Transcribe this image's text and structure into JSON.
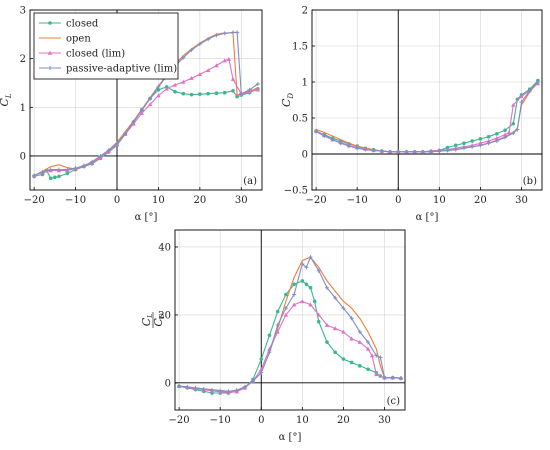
{
  "chart_data": [
    {
      "type": "line",
      "panel_label": "(a)",
      "xlabel": "α [°]",
      "ylabel": "C_L",
      "xlim": [
        -21,
        35
      ],
      "ylim": [
        -0.7,
        3
      ],
      "xticks": [
        -20,
        -10,
        0,
        10,
        20,
        30
      ],
      "yticks": [
        0,
        1,
        2,
        3
      ],
      "grid": true,
      "legend_position": "top-left",
      "series": [
        {
          "name": "closed",
          "color": "#3cb68f",
          "marker": "circle",
          "x": [
            -20,
            -18,
            -17,
            -16,
            -15,
            -14,
            -12,
            -10,
            -8,
            -6,
            -4,
            -2,
            0,
            2,
            4,
            6,
            8,
            10,
            12,
            14,
            16,
            18,
            20,
            22,
            24,
            26,
            28,
            29,
            30,
            32,
            34
          ],
          "y": [
            -0.42,
            -0.38,
            -0.3,
            -0.46,
            -0.44,
            -0.42,
            -0.36,
            -0.28,
            -0.22,
            -0.16,
            -0.05,
            0.08,
            0.22,
            0.45,
            0.7,
            0.95,
            1.18,
            1.36,
            1.42,
            1.32,
            1.28,
            1.26,
            1.27,
            1.28,
            1.29,
            1.3,
            1.34,
            1.22,
            1.25,
            1.3,
            1.38
          ]
        },
        {
          "name": "open",
          "color": "#f07b3f",
          "marker": "none",
          "x": [
            -20,
            -18,
            -16,
            -14,
            -12,
            -10,
            -8,
            -6,
            -4,
            -2,
            0,
            2,
            4,
            6,
            8,
            10,
            12,
            14,
            16,
            18,
            20,
            22,
            24,
            26,
            28,
            29,
            30,
            32,
            34
          ],
          "y": [
            -0.4,
            -0.32,
            -0.22,
            -0.18,
            -0.24,
            -0.27,
            -0.22,
            -0.14,
            -0.02,
            0.12,
            0.28,
            0.5,
            0.72,
            0.96,
            1.2,
            1.44,
            1.66,
            1.88,
            2.06,
            2.2,
            2.32,
            2.42,
            2.5,
            2.53,
            2.53,
            1.25,
            1.28,
            1.33,
            1.4
          ]
        },
        {
          "name": "closed (lim)",
          "color": "#e170c8",
          "marker": "triangle",
          "x": [
            -20,
            -18,
            -16,
            -14,
            -12,
            -10,
            -8,
            -6,
            -4,
            -2,
            0,
            2,
            4,
            6,
            8,
            10,
            12,
            14,
            16,
            18,
            20,
            22,
            24,
            26,
            27,
            28,
            30,
            32,
            34
          ],
          "y": [
            -0.4,
            -0.34,
            -0.3,
            -0.3,
            -0.3,
            -0.26,
            -0.2,
            -0.14,
            -0.04,
            0.1,
            0.24,
            0.45,
            0.66,
            0.88,
            1.06,
            1.24,
            1.38,
            1.46,
            1.52,
            1.6,
            1.68,
            1.76,
            1.86,
            1.96,
            1.99,
            1.58,
            1.27,
            1.32,
            1.36
          ]
        },
        {
          "name": "passive-adaptive (lim)",
          "color": "#7c8fc8",
          "marker": "cross",
          "x": [
            -20,
            -18,
            -16,
            -14,
            -12,
            -10,
            -8,
            -6,
            -4,
            -2,
            0,
            2,
            4,
            6,
            8,
            10,
            12,
            14,
            16,
            18,
            20,
            22,
            24,
            26,
            28,
            29,
            30,
            32,
            34
          ],
          "y": [
            -0.4,
            -0.33,
            -0.28,
            -0.28,
            -0.28,
            -0.25,
            -0.2,
            -0.12,
            0.0,
            0.12,
            0.26,
            0.46,
            0.7,
            0.94,
            1.18,
            1.42,
            1.64,
            1.84,
            2.02,
            2.18,
            2.3,
            2.4,
            2.48,
            2.52,
            2.54,
            2.54,
            1.28,
            1.36,
            1.48
          ]
        }
      ]
    },
    {
      "type": "line",
      "panel_label": "(b)",
      "xlabel": "α [°]",
      "ylabel": "C_D",
      "xlim": [
        -21,
        35
      ],
      "ylim": [
        -0.5,
        2
      ],
      "xticks": [
        -20,
        -10,
        0,
        10,
        20,
        30
      ],
      "yticks": [
        -0.5,
        0,
        0.5,
        1,
        1.5,
        2
      ],
      "grid": true,
      "series": [
        {
          "name": "closed",
          "color": "#3cb68f",
          "marker": "circle",
          "x": [
            -20,
            -18,
            -16,
            -14,
            -12,
            -10,
            -8,
            -6,
            -4,
            -2,
            0,
            2,
            4,
            6,
            8,
            10,
            12,
            14,
            16,
            18,
            20,
            22,
            24,
            26,
            28,
            29,
            30,
            32,
            34
          ],
          "y": [
            0.32,
            0.27,
            0.22,
            0.18,
            0.14,
            0.11,
            0.08,
            0.06,
            0.04,
            0.03,
            0.03,
            0.03,
            0.03,
            0.03,
            0.04,
            0.05,
            0.09,
            0.12,
            0.15,
            0.18,
            0.21,
            0.24,
            0.28,
            0.33,
            0.42,
            0.76,
            0.82,
            0.9,
            1.02
          ]
        },
        {
          "name": "open",
          "color": "#f07b3f",
          "marker": "none",
          "x": [
            -20,
            -18,
            -16,
            -14,
            -12,
            -10,
            -8,
            -6,
            -4,
            -2,
            0,
            2,
            4,
            6,
            8,
            10,
            12,
            14,
            16,
            18,
            20,
            22,
            24,
            26,
            28,
            29,
            30,
            32,
            34
          ],
          "y": [
            0.34,
            0.3,
            0.25,
            0.2,
            0.15,
            0.11,
            0.08,
            0.06,
            0.04,
            0.03,
            0.03,
            0.03,
            0.03,
            0.03,
            0.03,
            0.04,
            0.05,
            0.06,
            0.08,
            0.1,
            0.12,
            0.15,
            0.19,
            0.24,
            0.3,
            0.36,
            0.68,
            0.86,
            1.0
          ]
        },
        {
          "name": "closed (lim)",
          "color": "#e170c8",
          "marker": "triangle",
          "x": [
            -20,
            -18,
            -16,
            -14,
            -12,
            -10,
            -8,
            -6,
            -4,
            -2,
            0,
            2,
            4,
            6,
            8,
            10,
            12,
            14,
            16,
            18,
            20,
            22,
            24,
            26,
            27,
            28,
            30,
            32,
            34
          ],
          "y": [
            0.32,
            0.26,
            0.2,
            0.16,
            0.12,
            0.09,
            0.07,
            0.05,
            0.04,
            0.03,
            0.03,
            0.03,
            0.03,
            0.03,
            0.04,
            0.05,
            0.06,
            0.08,
            0.1,
            0.12,
            0.15,
            0.18,
            0.22,
            0.27,
            0.3,
            0.68,
            0.8,
            0.88,
            0.98
          ]
        },
        {
          "name": "passive-adaptive (lim)",
          "color": "#7c8fc8",
          "marker": "cross",
          "x": [
            -20,
            -18,
            -16,
            -14,
            -12,
            -10,
            -8,
            -6,
            -4,
            -2,
            0,
            2,
            4,
            6,
            8,
            10,
            12,
            14,
            16,
            18,
            20,
            22,
            24,
            26,
            28,
            29,
            30,
            32,
            34
          ],
          "y": [
            0.31,
            0.25,
            0.2,
            0.15,
            0.11,
            0.08,
            0.06,
            0.05,
            0.04,
            0.03,
            0.03,
            0.03,
            0.03,
            0.03,
            0.03,
            0.04,
            0.05,
            0.06,
            0.08,
            0.1,
            0.12,
            0.15,
            0.18,
            0.23,
            0.29,
            0.34,
            0.72,
            0.88,
            1.0
          ]
        }
      ]
    },
    {
      "type": "line",
      "panel_label": "(c)",
      "xlabel": "α [°]",
      "ylabel": "C_L/C_D",
      "xlim": [
        -21,
        35
      ],
      "ylim": [
        -8,
        45
      ],
      "xticks": [
        -20,
        -10,
        0,
        10,
        20,
        30
      ],
      "yticks": [
        0,
        20,
        40
      ],
      "grid": true,
      "series": [
        {
          "name": "closed",
          "color": "#3cb68f",
          "marker": "circle",
          "x": [
            -20,
            -18,
            -16,
            -14,
            -12,
            -10,
            -8,
            -6,
            -4,
            -2,
            0,
            2,
            4,
            6,
            8,
            10,
            11,
            12,
            13,
            14,
            16,
            18,
            20,
            22,
            24,
            26,
            28,
            29,
            30,
            32,
            34
          ],
          "y": [
            -1,
            -1.5,
            -2,
            -2.5,
            -3,
            -3,
            -3,
            -2.5,
            -1.5,
            1,
            7,
            14,
            21,
            26,
            29,
            30,
            29,
            28,
            24,
            18,
            12,
            9,
            7,
            6,
            5,
            4,
            3,
            2,
            1.5,
            1.5,
            1.3
          ]
        },
        {
          "name": "open",
          "color": "#f07b3f",
          "marker": "none",
          "x": [
            -20,
            -18,
            -16,
            -14,
            -12,
            -10,
            -8,
            -6,
            -4,
            -2,
            0,
            2,
            4,
            6,
            8,
            10,
            12,
            14,
            16,
            18,
            20,
            22,
            24,
            26,
            28,
            29,
            30,
            32,
            34
          ],
          "y": [
            -1,
            -1.2,
            -1.5,
            -1.8,
            -2,
            -2.3,
            -2.5,
            -2.3,
            -1.2,
            0.5,
            3,
            9,
            16,
            24,
            31,
            36,
            37,
            34,
            30,
            27,
            24,
            22,
            19,
            15,
            10,
            5,
            1.5,
            1.5,
            1.4
          ]
        },
        {
          "name": "closed (lim)",
          "color": "#e170c8",
          "marker": "triangle",
          "x": [
            -20,
            -18,
            -16,
            -14,
            -12,
            -10,
            -8,
            -6,
            -4,
            -2,
            0,
            2,
            4,
            6,
            8,
            10,
            12,
            14,
            16,
            18,
            20,
            22,
            24,
            26,
            27,
            28,
            30,
            32,
            34
          ],
          "y": [
            -1,
            -1.3,
            -1.7,
            -2,
            -2.4,
            -2.6,
            -2.8,
            -2.6,
            -1.5,
            0.5,
            4,
            10,
            15,
            20,
            23,
            24,
            23,
            20,
            17,
            16,
            15,
            13,
            12,
            10,
            8,
            2.5,
            1.5,
            1.5,
            1.4
          ]
        },
        {
          "name": "passive-adaptive (lim)",
          "color": "#7c8fc8",
          "marker": "cross",
          "x": [
            -20,
            -18,
            -16,
            -14,
            -12,
            -10,
            -8,
            -6,
            -4,
            -2,
            0,
            2,
            4,
            6,
            8,
            10,
            11,
            12,
            14,
            16,
            18,
            20,
            22,
            24,
            26,
            28,
            29,
            30,
            32,
            34
          ],
          "y": [
            -1,
            -1.2,
            -1.5,
            -1.8,
            -2.1,
            -2.3,
            -2.5,
            -2.2,
            -1.2,
            0.5,
            3,
            9,
            17,
            22,
            26,
            35,
            34,
            37,
            33,
            28,
            25,
            22,
            19,
            15,
            12,
            8,
            7.5,
            1.5,
            1.5,
            1.4
          ]
        }
      ]
    }
  ]
}
